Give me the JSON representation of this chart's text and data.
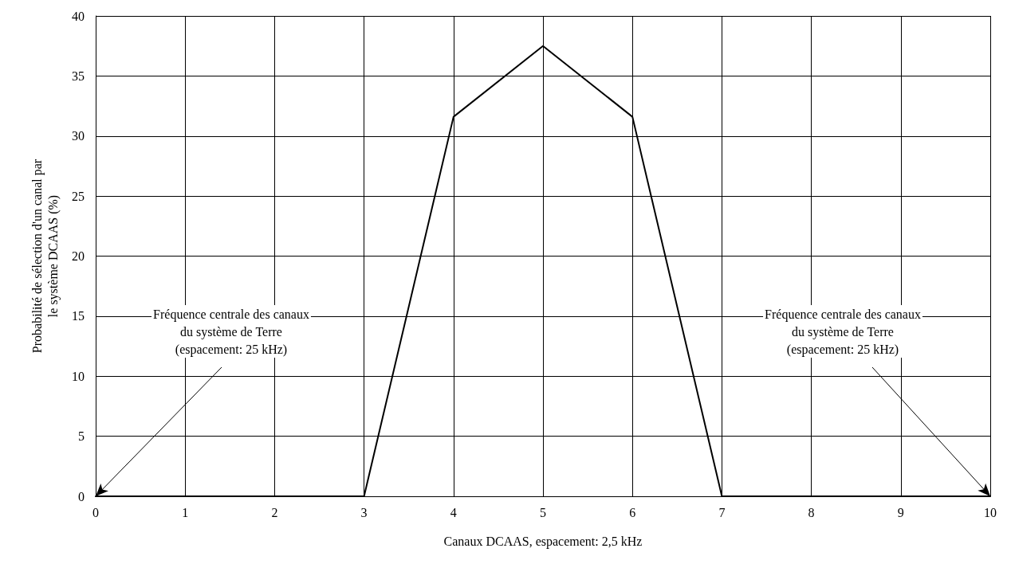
{
  "chart_data": {
    "type": "line",
    "xlabel": "Canaux DCAAS, espacement: 2,5 kHz",
    "ylabel": "Probabilité de sélection d'un canal par\nle système DCAAS (%)",
    "x": [
      0,
      1,
      2,
      3,
      4,
      5,
      6,
      7,
      8,
      9,
      10
    ],
    "series": [
      {
        "color": "#000000",
        "values": [
          0,
          0,
          0,
          0,
          31.6,
          37.5,
          31.6,
          0,
          0,
          0,
          0
        ]
      }
    ],
    "xlim": [
      0,
      10
    ],
    "xticks": [
      0,
      1,
      2,
      3,
      4,
      5,
      6,
      7,
      8,
      9,
      10
    ],
    "ylim": [
      0,
      40
    ],
    "yticks": [
      0,
      5,
      10,
      15,
      20,
      25,
      30,
      35,
      40
    ],
    "grid": true,
    "marker": "none",
    "line_style": "solid",
    "annotations": [
      {
        "text": "Fréquence centrale des canaux\ndu système de Terre\n(espacement: 25 kHz)",
        "x": 0,
        "y": 0
      },
      {
        "text": "Fréquence centrale des canaux\ndu système de Terre\n(espacement: 25 kHz)",
        "x": 10,
        "y": 0
      }
    ]
  }
}
